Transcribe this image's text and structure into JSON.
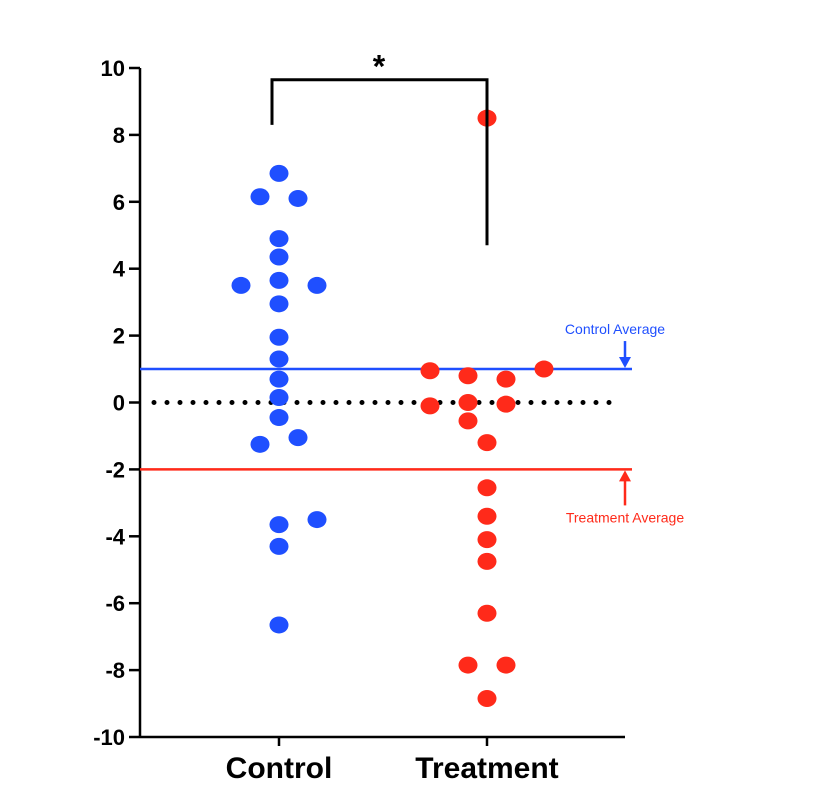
{
  "chart_data": {
    "type": "scatter",
    "categories": [
      "Control",
      "Treatment"
    ],
    "ylim": [
      -10,
      10
    ],
    "yticks": [
      10,
      8,
      6,
      4,
      2,
      0,
      -2,
      -4,
      -6,
      -8,
      -10
    ],
    "series": [
      {
        "category": "Control",
        "color": "#1f4fff",
        "points": [
          {
            "offset": 0,
            "y": 6.85
          },
          {
            "offset": -1,
            "y": 6.15
          },
          {
            "offset": 1,
            "y": 6.1
          },
          {
            "offset": 0,
            "y": 4.9
          },
          {
            "offset": 0,
            "y": 4.35
          },
          {
            "offset": -2,
            "y": 3.5
          },
          {
            "offset": 0,
            "y": 3.65
          },
          {
            "offset": 2,
            "y": 3.5
          },
          {
            "offset": 0,
            "y": 2.95
          },
          {
            "offset": 0,
            "y": 1.95
          },
          {
            "offset": 0,
            "y": 1.3
          },
          {
            "offset": 0,
            "y": 0.7
          },
          {
            "offset": 0,
            "y": 0.15
          },
          {
            "offset": 0,
            "y": -0.45
          },
          {
            "offset": 1,
            "y": -1.05
          },
          {
            "offset": -1,
            "y": -1.25
          },
          {
            "offset": 2,
            "y": -3.5
          },
          {
            "offset": 0,
            "y": -3.65
          },
          {
            "offset": 0,
            "y": -4.3
          },
          {
            "offset": 0,
            "y": -6.65
          }
        ]
      },
      {
        "category": "Treatment",
        "color": "#ff2a1a",
        "points": [
          {
            "offset": 0,
            "y": 8.5
          },
          {
            "offset": -3,
            "y": 0.95
          },
          {
            "offset": 3,
            "y": 1.0
          },
          {
            "offset": -1,
            "y": 0.8
          },
          {
            "offset": 1,
            "y": 0.7
          },
          {
            "offset": -3,
            "y": -0.1
          },
          {
            "offset": -1,
            "y": 0.0
          },
          {
            "offset": 1,
            "y": -0.05
          },
          {
            "offset": -1,
            "y": -0.55
          },
          {
            "offset": 0,
            "y": -1.2
          },
          {
            "offset": 0,
            "y": -2.55
          },
          {
            "offset": 0,
            "y": -3.4
          },
          {
            "offset": 0,
            "y": -4.1
          },
          {
            "offset": 0,
            "y": -4.75
          },
          {
            "offset": 0,
            "y": -6.3
          },
          {
            "offset": -1,
            "y": -7.85
          },
          {
            "offset": 1,
            "y": -7.85
          },
          {
            "offset": 0,
            "y": -8.85
          }
        ]
      }
    ],
    "reference_lines": [
      {
        "y": 1.0,
        "color": "#1f4fff",
        "label": "Control Average",
        "arrow": "down"
      },
      {
        "y": -2.0,
        "color": "#ff2a1a",
        "label": "Treatment Average",
        "arrow": "up"
      },
      {
        "y": 0.0,
        "color": "#000000",
        "style": "dotted",
        "label": ""
      }
    ],
    "significance": {
      "label": "*",
      "from": "Control",
      "to": "Treatment",
      "bracket_y": 9.65,
      "left_bottom_y": 8.3,
      "right_bottom_y": 4.7
    },
    "title": "",
    "xlabel": "",
    "ylabel": ""
  }
}
